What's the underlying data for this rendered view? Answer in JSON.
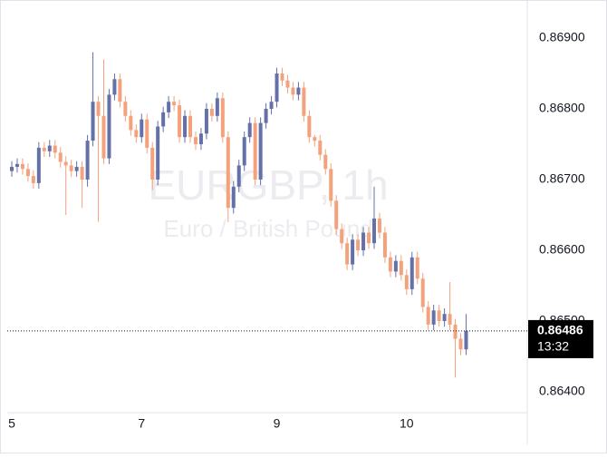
{
  "chart_data": {
    "type": "candlestick",
    "watermark_title": "EURGBP, 1h",
    "watermark_subtitle": "Euro / British Pound",
    "up_color": "#6470a8",
    "down_color": "#f4a27c",
    "categories": [
      "5",
      null,
      null,
      null,
      null,
      null,
      null,
      null,
      null,
      null,
      null,
      null,
      null,
      null,
      null,
      null,
      null,
      null,
      null,
      null,
      null,
      null,
      null,
      null,
      "7",
      null,
      null,
      null,
      null,
      null,
      null,
      null,
      null,
      null,
      null,
      null,
      null,
      null,
      null,
      null,
      null,
      null,
      null,
      null,
      null,
      null,
      null,
      null,
      null,
      "9",
      null,
      null,
      null,
      null,
      null,
      null,
      null,
      null,
      null,
      null,
      null,
      null,
      null,
      null,
      null,
      null,
      null,
      null,
      null,
      null,
      null,
      null,
      null,
      "10",
      null,
      null,
      null,
      null,
      null,
      null,
      null,
      null,
      null,
      null,
      null
    ],
    "open": [
      0.86712,
      0.86718,
      0.86722,
      0.86715,
      0.86705,
      0.86695,
      0.86745,
      0.8674,
      0.86748,
      0.86738,
      0.86725,
      0.8672,
      0.86712,
      0.86718,
      0.867,
      0.86755,
      0.8681,
      0.8679,
      0.8673,
      0.8682,
      0.86842,
      0.8681,
      0.8679,
      0.8677,
      0.8676,
      0.86785,
      0.86745,
      0.867,
      0.86775,
      0.86795,
      0.8681,
      0.86805,
      0.8676,
      0.8679,
      0.8676,
      0.8675,
      0.86765,
      0.868,
      0.8679,
      0.86815,
      0.8676,
      0.8666,
      0.8669,
      0.8672,
      0.8676,
      0.8678,
      0.867,
      0.8678,
      0.868,
      0.8681,
      0.8685,
      0.8684,
      0.8683,
      0.8682,
      0.8683,
      0.8679,
      0.8676,
      0.86755,
      0.86735,
      0.86715,
      0.8667,
      0.8663,
      0.8661,
      0.8658,
      0.86615,
      0.866,
      0.86625,
      0.8661,
      0.86645,
      0.86625,
      0.8659,
      0.8657,
      0.86585,
      0.86565,
      0.86545,
      0.8659,
      0.8656,
      0.8652,
      0.86495,
      0.86515,
      0.865,
      0.8651,
      0.86495,
      0.86475,
      0.8646
    ],
    "high": [
      0.86726,
      0.8673,
      0.8673,
      0.86723,
      0.86713,
      0.86753,
      0.86753,
      0.86756,
      0.86756,
      0.86746,
      0.86733,
      0.86728,
      0.86726,
      0.86726,
      0.86763,
      0.8688,
      0.86818,
      0.8687,
      0.86828,
      0.8685,
      0.8685,
      0.86818,
      0.86798,
      0.86778,
      0.86793,
      0.86793,
      0.86753,
      0.86783,
      0.86803,
      0.86818,
      0.86818,
      0.86813,
      0.86798,
      0.86798,
      0.86768,
      0.86773,
      0.86808,
      0.86808,
      0.86823,
      0.86823,
      0.86768,
      0.86698,
      0.86728,
      0.86768,
      0.86788,
      0.86788,
      0.86788,
      0.86808,
      0.86818,
      0.86858,
      0.86858,
      0.86848,
      0.86838,
      0.86838,
      0.86838,
      0.86798,
      0.86763,
      0.86763,
      0.86743,
      0.86723,
      0.86678,
      0.86638,
      0.86618,
      0.86623,
      0.86623,
      0.86633,
      0.86633,
      0.8669,
      0.86653,
      0.86633,
      0.86598,
      0.86593,
      0.86593,
      0.86573,
      0.86598,
      0.86598,
      0.86568,
      0.86528,
      0.86523,
      0.86523,
      0.86518,
      0.86555,
      0.86503,
      0.86483,
      0.8651
    ],
    "low": [
      0.86704,
      0.8671,
      0.86707,
      0.86697,
      0.86687,
      0.86687,
      0.86732,
      0.86732,
      0.8673,
      0.86717,
      0.8665,
      0.86704,
      0.86704,
      0.8666,
      0.8669,
      0.86747,
      0.8664,
      0.86722,
      0.86722,
      0.86812,
      0.86802,
      0.86782,
      0.86762,
      0.86752,
      0.86752,
      0.86737,
      0.86685,
      0.86692,
      0.86767,
      0.86787,
      0.86797,
      0.86752,
      0.86752,
      0.86752,
      0.86742,
      0.86742,
      0.86757,
      0.86782,
      0.86782,
      0.86752,
      0.8664,
      0.86652,
      0.86682,
      0.86712,
      0.86752,
      0.86692,
      0.86692,
      0.86772,
      0.86792,
      0.86802,
      0.86832,
      0.86822,
      0.86812,
      0.86812,
      0.86782,
      0.86752,
      0.86747,
      0.86727,
      0.86707,
      0.86662,
      0.86622,
      0.86602,
      0.86572,
      0.86572,
      0.86592,
      0.86592,
      0.86602,
      0.86602,
      0.86617,
      0.86582,
      0.86562,
      0.86562,
      0.86557,
      0.86537,
      0.86537,
      0.86552,
      0.86512,
      0.86487,
      0.86487,
      0.86492,
      0.86492,
      0.86487,
      0.8642,
      0.86452,
      0.86452
    ],
    "close": [
      0.86718,
      0.86722,
      0.86715,
      0.86705,
      0.86695,
      0.86745,
      0.8674,
      0.86748,
      0.86738,
      0.86725,
      0.8672,
      0.86712,
      0.86718,
      0.867,
      0.86755,
      0.8681,
      0.8679,
      0.8673,
      0.8682,
      0.86842,
      0.8681,
      0.8679,
      0.8677,
      0.8676,
      0.86785,
      0.86745,
      0.867,
      0.86775,
      0.86795,
      0.8681,
      0.86805,
      0.8676,
      0.8679,
      0.8676,
      0.8675,
      0.86765,
      0.868,
      0.8679,
      0.86815,
      0.8676,
      0.8666,
      0.8669,
      0.8672,
      0.8676,
      0.8678,
      0.867,
      0.8678,
      0.868,
      0.8681,
      0.8685,
      0.8684,
      0.8683,
      0.8682,
      0.8683,
      0.8679,
      0.8676,
      0.86755,
      0.86735,
      0.86715,
      0.8667,
      0.8663,
      0.8661,
      0.8658,
      0.86615,
      0.866,
      0.86625,
      0.8661,
      0.86645,
      0.86625,
      0.8659,
      0.8657,
      0.86585,
      0.86565,
      0.86545,
      0.8659,
      0.8656,
      0.8652,
      0.86495,
      0.86515,
      0.865,
      0.8651,
      0.86495,
      0.86475,
      0.8646,
      0.86486
    ],
    "ylim": [
      0.8636,
      0.86931
    ],
    "yticks": [
      {
        "value": 0.864,
        "label": "0.86400"
      },
      {
        "value": 0.865,
        "label": "0.86500"
      },
      {
        "value": 0.866,
        "label": "0.86600"
      },
      {
        "value": 0.867,
        "label": "0.86700"
      },
      {
        "value": 0.868,
        "label": "0.86800"
      },
      {
        "value": 0.869,
        "label": "0.86900"
      }
    ],
    "last_price": {
      "value": 0.86486,
      "label": "0.86486"
    },
    "countdown": "13:32"
  }
}
